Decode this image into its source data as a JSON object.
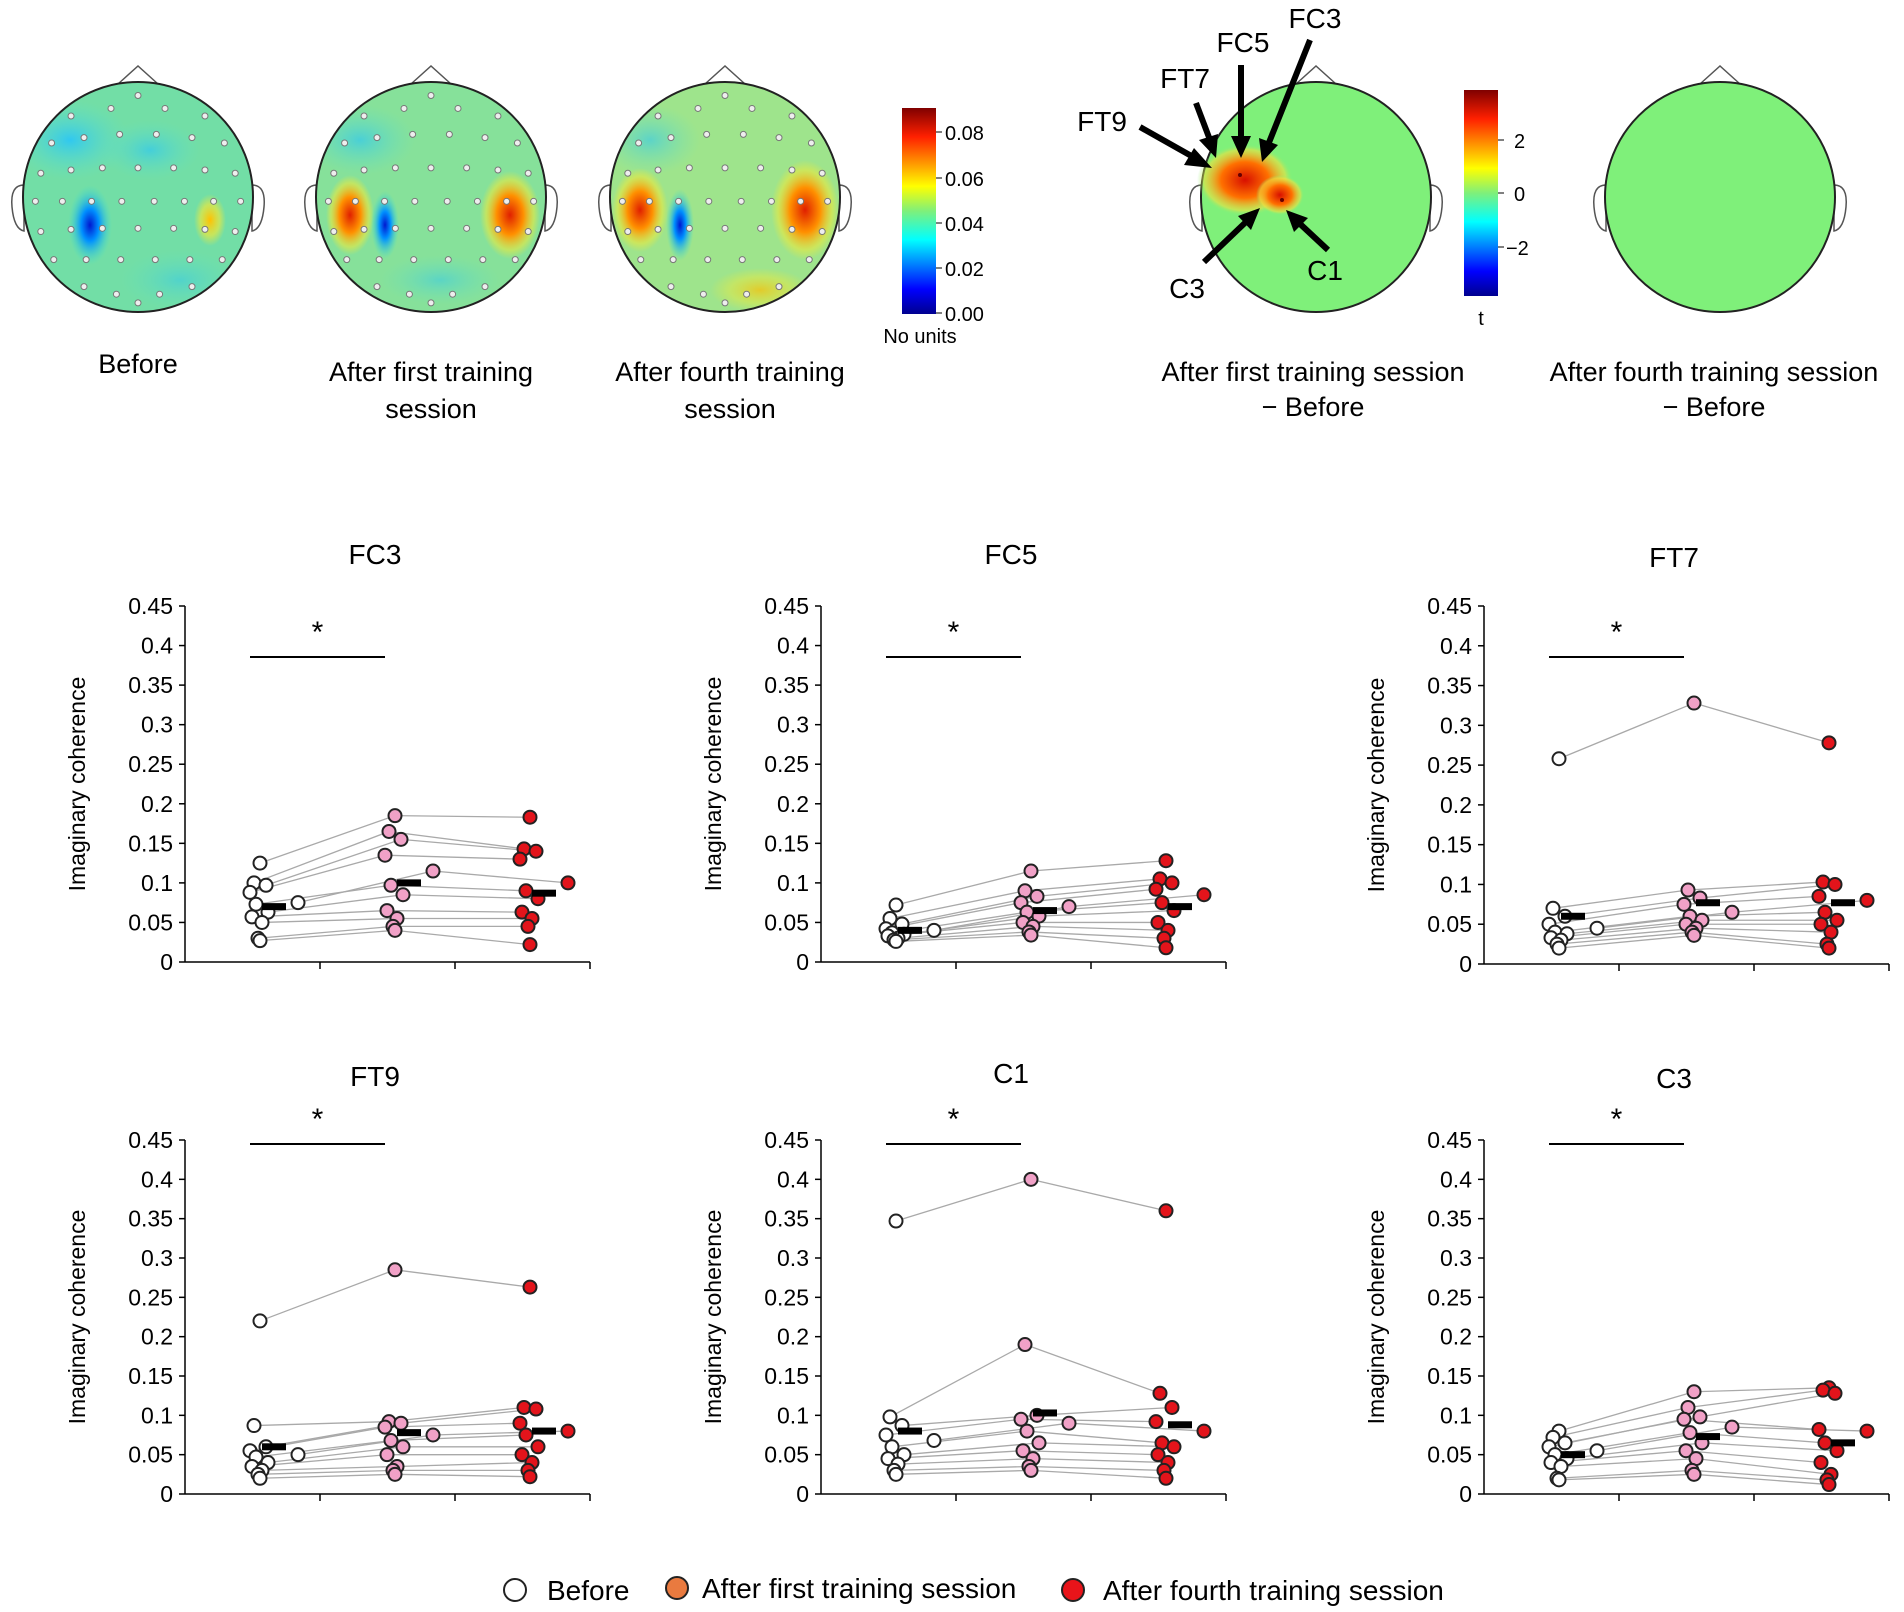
{
  "topomaps": {
    "before": {
      "caption": [
        "Before"
      ]
    },
    "after_first": {
      "caption": [
        "After first training",
        "session"
      ]
    },
    "after_fourth": {
      "caption": [
        "After fourth training",
        "session"
      ]
    },
    "colorbar": {
      "ticks": [
        "0.08",
        "0.06",
        "0.04",
        "0.02",
        "0.00"
      ],
      "unit": "No units"
    }
  },
  "difference_maps": {
    "first_minus_before": {
      "caption": [
        "After first training session",
        "− Before"
      ],
      "electrode_labels": [
        "FT9",
        "FT7",
        "FC5",
        "FC3",
        "C3",
        "C1"
      ]
    },
    "colorbar": {
      "ticks": [
        "2",
        "0",
        "−2"
      ],
      "unit": "t"
    },
    "fourth_minus_before": {
      "caption": [
        "After fourth training session",
        "− Before"
      ]
    }
  },
  "legend": {
    "items": [
      {
        "label": "Before",
        "color": "#ffffff"
      },
      {
        "label": "After first training session",
        "color": "#e97a3f"
      },
      {
        "label": "After fourth training session",
        "color": "#e8141a"
      }
    ]
  },
  "colors": {
    "before": "#ffffff",
    "after_first": "#f1a1c7",
    "after_fourth": "#e3141b",
    "mean_bar": "#000000",
    "lines": "#a9a9a9"
  },
  "chart_data": [
    {
      "type": "scatter",
      "title": "FC3",
      "ylabel": "Imaginary coherence",
      "ylim": [
        0,
        0.45
      ],
      "yticks": [
        "0.45",
        "0.4",
        "0.35",
        "0.3",
        "0.25",
        "0.2",
        "0.15",
        "0.1",
        "0.05",
        "0"
      ],
      "groups": [
        "Before",
        "After first training session",
        "After fourth training session"
      ],
      "values": {
        "before": [
          0.125,
          0.1,
          0.097,
          0.088,
          0.075,
          0.073,
          0.063,
          0.057,
          0.05,
          0.03,
          0.027
        ],
        "after_first": [
          0.185,
          0.165,
          0.155,
          0.135,
          0.115,
          0.097,
          0.085,
          0.065,
          0.055,
          0.045,
          0.04
        ],
        "after_fourth": [
          0.183,
          0.143,
          0.14,
          0.13,
          0.1,
          0.09,
          0.08,
          0.063,
          0.055,
          0.045,
          0.022
        ]
      },
      "means": [
        0.07,
        0.1,
        0.087
      ],
      "significance": "*"
    },
    {
      "type": "scatter",
      "title": "FC5",
      "ylabel": "Imaginary coherence",
      "ylim": [
        0,
        0.45
      ],
      "yticks": [
        "0.45",
        "0.4",
        "0.35",
        "0.3",
        "0.25",
        "0.2",
        "0.15",
        "0.1",
        "0.05",
        "0"
      ],
      "groups": [
        "Before",
        "After first training session",
        "After fourth training session"
      ],
      "values": {
        "before": [
          0.072,
          0.055,
          0.048,
          0.042,
          0.04,
          0.037,
          0.035,
          0.033,
          0.03,
          0.028,
          0.026
        ],
        "after_first": [
          0.115,
          0.09,
          0.083,
          0.075,
          0.07,
          0.063,
          0.058,
          0.05,
          0.045,
          0.038,
          0.034
        ],
        "after_fourth": [
          0.128,
          0.105,
          0.1,
          0.092,
          0.085,
          0.075,
          0.065,
          0.05,
          0.04,
          0.03,
          0.018
        ]
      },
      "means": [
        0.04,
        0.065,
        0.07
      ],
      "significance": "*"
    },
    {
      "type": "scatter",
      "title": "FT7",
      "ylabel": "Imaginary coherence",
      "ylim": [
        0,
        0.45
      ],
      "yticks": [
        "0.45",
        "0.4",
        "0.35",
        "0.3",
        "0.25",
        "0.2",
        "0.15",
        "0.1",
        "0.05",
        "0"
      ],
      "groups": [
        "Before",
        "After first training session",
        "After fourth training session"
      ],
      "values": {
        "before": [
          0.258,
          0.07,
          0.06,
          0.05,
          0.045,
          0.04,
          0.038,
          0.033,
          0.03,
          0.025,
          0.02
        ],
        "after_first": [
          0.328,
          0.093,
          0.083,
          0.075,
          0.065,
          0.06,
          0.055,
          0.05,
          0.045,
          0.04,
          0.036
        ],
        "after_fourth": [
          0.278,
          0.103,
          0.1,
          0.085,
          0.08,
          0.065,
          0.055,
          0.05,
          0.04,
          0.025,
          0.02
        ]
      },
      "means": [
        0.06,
        0.077,
        0.077
      ],
      "significance": "*"
    },
    {
      "type": "scatter",
      "title": "FT9",
      "ylabel": "Imaginary coherence",
      "ylim": [
        0,
        0.45
      ],
      "yticks": [
        "0.45",
        "0.4",
        "0.35",
        "0.3",
        "0.25",
        "0.2",
        "0.15",
        "0.1",
        "0.05",
        "0"
      ],
      "groups": [
        "Before",
        "After first training session",
        "After fourth training session"
      ],
      "values": {
        "before": [
          0.22,
          0.087,
          0.06,
          0.055,
          0.05,
          0.047,
          0.04,
          0.035,
          0.03,
          0.025,
          0.02
        ],
        "after_first": [
          0.285,
          0.092,
          0.09,
          0.085,
          0.075,
          0.068,
          0.06,
          0.05,
          0.035,
          0.03,
          0.025
        ],
        "after_fourth": [
          0.263,
          0.11,
          0.108,
          0.09,
          0.08,
          0.075,
          0.06,
          0.05,
          0.04,
          0.03,
          0.022
        ]
      },
      "means": [
        0.06,
        0.078,
        0.08
      ],
      "significance": "*"
    },
    {
      "type": "scatter",
      "title": "C1",
      "ylabel": "Imaginary coherence",
      "ylim": [
        0,
        0.45
      ],
      "yticks": [
        "0.45",
        "0.4",
        "0.35",
        "0.3",
        "0.25",
        "0.2",
        "0.15",
        "0.1",
        "0.05",
        "0"
      ],
      "groups": [
        "Before",
        "After first training session",
        "After fourth training session"
      ],
      "values": {
        "before": [
          0.347,
          0.098,
          0.087,
          0.075,
          0.068,
          0.06,
          0.05,
          0.045,
          0.038,
          0.03,
          0.025
        ],
        "after_first": [
          0.4,
          0.19,
          0.1,
          0.095,
          0.09,
          0.08,
          0.065,
          0.055,
          0.045,
          0.035,
          0.03
        ],
        "after_fourth": [
          0.36,
          0.128,
          0.11,
          0.092,
          0.08,
          0.065,
          0.06,
          0.05,
          0.04,
          0.03,
          0.02
        ]
      },
      "means": [
        0.08,
        0.103,
        0.088
      ],
      "significance": "*"
    },
    {
      "type": "scatter",
      "title": "C3",
      "ylabel": "Imaginary coherence",
      "ylim": [
        0,
        0.45
      ],
      "yticks": [
        "0.45",
        "0.4",
        "0.35",
        "0.3",
        "0.25",
        "0.2",
        "0.15",
        "0.1",
        "0.05",
        "0"
      ],
      "groups": [
        "Before",
        "After first training session",
        "After fourth training session"
      ],
      "values": {
        "before": [
          0.08,
          0.072,
          0.065,
          0.06,
          0.055,
          0.05,
          0.045,
          0.04,
          0.035,
          0.02,
          0.018
        ],
        "after_first": [
          0.13,
          0.11,
          0.098,
          0.095,
          0.085,
          0.078,
          0.065,
          0.055,
          0.045,
          0.03,
          0.025
        ],
        "after_fourth": [
          0.135,
          0.132,
          0.128,
          0.082,
          0.08,
          0.065,
          0.055,
          0.04,
          0.025,
          0.018,
          0.012
        ]
      },
      "means": [
        0.05,
        0.073,
        0.065
      ],
      "significance": "*"
    }
  ]
}
